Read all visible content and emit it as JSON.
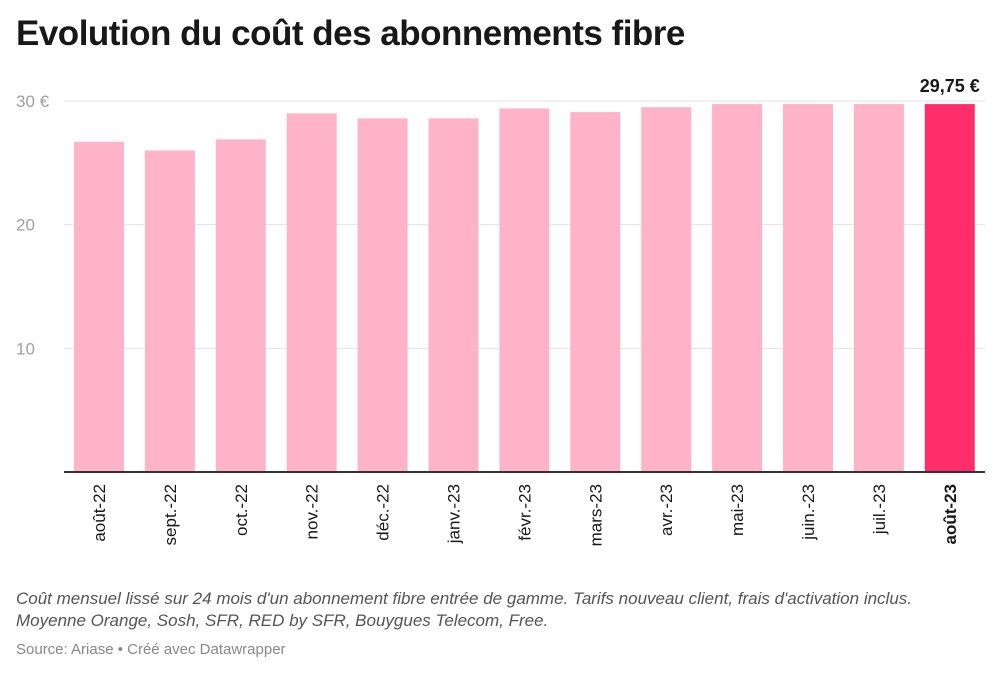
{
  "chart_data": {
    "type": "bar",
    "title": "Evolution du coût des abonnements fibre",
    "categories": [
      "août-22",
      "sept.-22",
      "oct.-22",
      "nov.-22",
      "déc.-22",
      "janv.-23",
      "févr.-23",
      "mars-23",
      "avr.-23",
      "mai-23",
      "juin.-23",
      "juil.-23",
      "août-23"
    ],
    "values": [
      26.7,
      26.0,
      26.9,
      29.0,
      28.6,
      28.6,
      29.4,
      29.1,
      29.5,
      29.75,
      29.75,
      29.75,
      29.75
    ],
    "ylim": [
      0,
      30
    ],
    "yticks": [
      10,
      20,
      30
    ],
    "ytick_labels": [
      "10",
      "20",
      "30 €"
    ],
    "highlight_index": 12,
    "highlight_label": "29,75 €",
    "colors": {
      "bar": "#ffb3c8",
      "highlight": "#ff2d6a"
    },
    "grid": true,
    "note": "Coût mensuel lissé sur 24 mois d'un abonnement fibre entrée de gamme. Tarifs nouveau client, frais d'activation inclus. Moyenne Orange, Sosh, SFR, RED by SFR, Bouygues Telecom, Free.",
    "source": "Source: Ariase • Créé avec Datawrapper"
  }
}
